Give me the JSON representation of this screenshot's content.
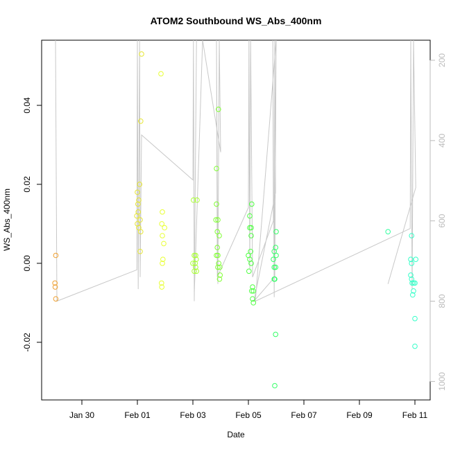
{
  "chart_data": {
    "type": "scatter",
    "title": "ATOM2 Southbound WS_Abs_400nm",
    "xlabel": "Date",
    "ylabel": "WS_Abs_400nm",
    "xlim": [
      28.55,
      42.55
    ],
    "xticks": [
      {
        "value": 30,
        "label": "Jan 30"
      },
      {
        "value": 32,
        "label": "Feb 01"
      },
      {
        "value": 34,
        "label": "Feb 03"
      },
      {
        "value": 36,
        "label": "Feb 05"
      },
      {
        "value": 38,
        "label": "Feb 07"
      },
      {
        "value": 40,
        "label": "Feb 09"
      },
      {
        "value": 42,
        "label": "Feb 11"
      }
    ],
    "ylim": [
      -0.0346,
      0.0565
    ],
    "yticks": [
      {
        "value": -0.02,
        "label": "-0.02"
      },
      {
        "value": 0,
        "label": "0.00"
      },
      {
        "value": 0.02,
        "label": "0.02"
      },
      {
        "value": 0.04,
        "label": "0.04"
      }
    ],
    "y2lim": [
      1046,
      150
    ],
    "y2ticks": [
      200,
      400,
      600,
      800,
      1000
    ],
    "series": [
      {
        "color": "#f0a030",
        "x": [
          29.06,
          29.03,
          29.04,
          29.06
        ],
        "values": [
          0.002,
          -0.005,
          -0.006,
          -0.009
        ]
      },
      {
        "color": "#e6e633",
        "x": [
          32.15,
          32.12,
          32.08,
          32.0,
          32.05,
          32.02,
          32.03,
          31.98,
          32.1,
          32.0,
          32.05,
          32.12,
          32.1
        ],
        "values": [
          0.053,
          0.036,
          0.02,
          0.018,
          0.016,
          0.015,
          0.013,
          0.012,
          0.011,
          0.01,
          0.009,
          0.008,
          0.003
        ]
      },
      {
        "color": "#e8ff33",
        "x": [
          32.85,
          32.9,
          32.88,
          32.98,
          32.9,
          32.95,
          32.92,
          32.9,
          32.87,
          32.88
        ],
        "values": [
          0.048,
          0.013,
          0.01,
          0.009,
          0.007,
          0.005,
          0.001,
          0.0,
          -0.005,
          -0.006
        ]
      },
      {
        "color": "#a8ff33",
        "x": [
          34.02,
          34.15,
          34.05,
          34.1,
          34.12,
          34.0,
          34.08,
          34.1,
          34.05,
          34.13
        ],
        "values": [
          0.016,
          0.016,
          0.002,
          0.002,
          0.001,
          0.0,
          0.0,
          -0.001,
          -0.002,
          -0.002
        ]
      },
      {
        "color": "#80ff33",
        "x": [
          34.92,
          34.85,
          34.85,
          34.83,
          34.9,
          34.88,
          34.95,
          34.88,
          34.85,
          34.9,
          34.93,
          34.9,
          34.97,
          34.98,
          34.96
        ],
        "values": [
          0.039,
          0.024,
          0.015,
          0.011,
          0.011,
          0.008,
          0.007,
          0.004,
          0.002,
          0.002,
          0.0,
          -0.001,
          -0.001,
          -0.003,
          -0.004
        ]
      },
      {
        "color": "#4dff40",
        "x": [
          36.12,
          36.05,
          36.05,
          36.1,
          36.1,
          36.08,
          36.0,
          36.05,
          36.1,
          36.02,
          36.15,
          36.12,
          36.18,
          36.15,
          36.18
        ],
        "values": [
          0.015,
          0.012,
          0.009,
          0.009,
          0.007,
          0.003,
          0.002,
          0.001,
          0.0,
          -0.002,
          -0.006,
          -0.007,
          -0.007,
          -0.009,
          -0.01
        ]
      },
      {
        "color": "#33ff66",
        "x": [
          37.0,
          36.98,
          36.93,
          37.0,
          36.9,
          36.93,
          36.98,
          36.93,
          36.95,
          36.98,
          36.95
        ],
        "values": [
          0.008,
          0.004,
          0.003,
          0.002,
          0.001,
          -0.001,
          -0.001,
          -0.004,
          -0.004,
          -0.018,
          -0.031
        ]
      },
      {
        "color": "#33ffa0",
        "x": [
          41.03
        ],
        "values": [
          0.008
        ]
      },
      {
        "color": "#33ffc8",
        "x": [
          41.88,
          41.85,
          42.03,
          41.88,
          41.85,
          41.88,
          41.95,
          41.9,
          42.0,
          41.95,
          41.92,
          42.0,
          42.0
        ],
        "values": [
          0.007,
          0.001,
          0.001,
          0.0,
          -0.003,
          -0.004,
          -0.005,
          -0.005,
          -0.005,
          -0.007,
          -0.008,
          -0.014,
          -0.021
        ]
      }
    ],
    "line": {
      "axis": "y2",
      "color": "#c8c8c8",
      "x": [
        29.05,
        29.1,
        31.98,
        32.0,
        32.03,
        32.08,
        32.1,
        32.15,
        34.0,
        34.02,
        34.05,
        34.13,
        34.05,
        34.35,
        35.0,
        34.95,
        34.9,
        34.85,
        34.88,
        36.0,
        36.02,
        36.05,
        36.08,
        36.15,
        36.9,
        36.88,
        36.93,
        36.95,
        36.98,
        36.2,
        36.95,
        37.0,
        36.25,
        41.83,
        41.85,
        41.9,
        41.95,
        42.03,
        41.03
      ],
      "values": [
        150,
        800,
        722,
        150,
        770,
        150,
        740,
        386,
        498,
        150,
        800,
        150,
        783,
        150,
        429,
        150,
        757,
        150,
        740,
        567,
        150,
        720,
        150,
        740,
        600,
        150,
        790,
        150,
        530,
        800,
        740,
        150,
        800,
        619,
        150,
        770,
        150,
        517,
        757
      ]
    }
  }
}
